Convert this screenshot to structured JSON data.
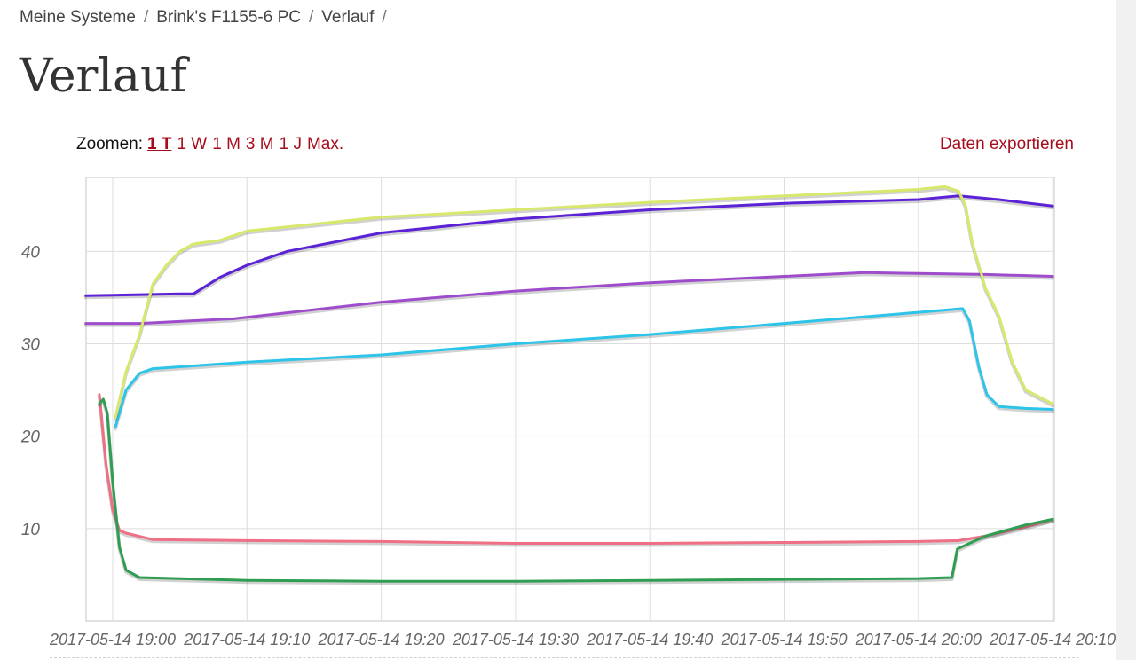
{
  "breadcrumb": {
    "items": [
      "Meine Systeme",
      "Brink's F1155-6 PC",
      "Verlauf"
    ],
    "separator": "/"
  },
  "page": {
    "title": "Verlauf"
  },
  "zoom": {
    "label": "Zoomen:",
    "options": [
      "1 T",
      "1 W",
      "1 M",
      "3 M",
      "1 J",
      "Max."
    ],
    "active": "1 T"
  },
  "export": {
    "label": "Daten exportieren"
  },
  "chart_data": {
    "type": "line",
    "ylim": [
      0,
      48
    ],
    "yticks": [
      10,
      20,
      30,
      40
    ],
    "xlim": [
      "2017-05-14 18:58",
      "2017-05-14 20:10"
    ],
    "xticks": [
      "2017-05-14 19:00",
      "2017-05-14 19:10",
      "2017-05-14 19:20",
      "2017-05-14 19:30",
      "2017-05-14 19:40",
      "2017-05-14 19:50",
      "2017-05-14 20:00",
      "2017-05-14 20:10"
    ],
    "grid": true,
    "series": [
      {
        "color": "#5c22d6",
        "x": [
          "2017-05-14 18:58",
          "2017-05-14 19:05",
          "2017-05-14 19:06",
          "2017-05-14 19:08",
          "2017-05-14 19:10",
          "2017-05-14 19:13",
          "2017-05-14 19:20",
          "2017-05-14 19:30",
          "2017-05-14 19:40",
          "2017-05-14 19:50",
          "2017-05-14 20:00",
          "2017-05-14 20:03",
          "2017-05-14 20:06",
          "2017-05-14 20:10"
        ],
        "y": [
          35.2,
          35.4,
          35.4,
          37.2,
          38.5,
          40.0,
          42.0,
          43.5,
          44.5,
          45.2,
          45.6,
          46.0,
          45.6,
          44.9
        ]
      },
      {
        "color": "#9e4ccc",
        "x": [
          "2017-05-14 18:58",
          "2017-05-14 19:02",
          "2017-05-14 19:09",
          "2017-05-14 19:20",
          "2017-05-14 19:30",
          "2017-05-14 19:40",
          "2017-05-14 19:50",
          "2017-05-14 19:56",
          "2017-05-14 20:00",
          "2017-05-14 20:05",
          "2017-05-14 20:10"
        ],
        "y": [
          32.2,
          32.2,
          32.7,
          34.5,
          35.7,
          36.6,
          37.3,
          37.7,
          37.6,
          37.5,
          37.3
        ]
      },
      {
        "color": "#2cc4e8",
        "x": [
          "2017-05-14 19:00.2",
          "2017-05-14 19:01",
          "2017-05-14 19:02",
          "2017-05-14 19:03",
          "2017-05-14 19:10",
          "2017-05-14 19:20",
          "2017-05-14 19:30",
          "2017-05-14 19:40",
          "2017-05-14 19:50",
          "2017-05-14 20:00",
          "2017-05-14 20:03.3",
          "20:03.8",
          "20:04.5",
          "20:05.1",
          "20:06",
          "20:08",
          "20:10"
        ],
        "y": [
          21.0,
          25.0,
          26.8,
          27.3,
          28.0,
          28.8,
          30.0,
          31.0,
          32.2,
          33.4,
          33.8,
          32.5,
          27.5,
          24.5,
          23.2,
          23.0,
          22.9
        ]
      },
      {
        "color": "#d7e86a",
        "x": [
          "19:00.2",
          "19:01",
          "19:02",
          "19:03",
          "19:04",
          "19:05",
          "19:06",
          "19:07",
          "19:08",
          "19:10",
          "19:20",
          "19:30",
          "19:40",
          "19:50",
          "20:00",
          "20:02",
          "20:03",
          "20:03.5",
          "20:04",
          "20:05",
          "20:06",
          "20:07",
          "20:08",
          "20:10"
        ],
        "y": [
          22.0,
          27.0,
          31.0,
          36.5,
          38.5,
          40.0,
          40.8,
          41.0,
          41.2,
          42.2,
          43.7,
          44.5,
          45.3,
          46.0,
          46.7,
          47.0,
          46.5,
          45.0,
          41.0,
          36.0,
          33.0,
          28.0,
          25.0,
          23.5
        ]
      },
      {
        "color": "#ef6f84",
        "x": [
          "18:59",
          "18:59.5",
          "19:00",
          "19:00.5",
          "19:01",
          "19:03",
          "19:10",
          "19:20",
          "19:30",
          "19:40",
          "19:50",
          "20:00",
          "20:03",
          "20:05",
          "20:08",
          "20:10"
        ],
        "y": [
          24.5,
          17.0,
          12.0,
          9.8,
          9.5,
          8.8,
          8.7,
          8.6,
          8.4,
          8.4,
          8.5,
          8.6,
          8.7,
          9.2,
          10.2,
          11.0
        ]
      },
      {
        "color": "#2f9e52",
        "x": [
          "18:59",
          "18:59.3",
          "18:59.6",
          "19:00",
          "19:00.5",
          "19:01",
          "19:02",
          "19:10",
          "19:20",
          "19:30",
          "19:40",
          "19:50",
          "20:00",
          "20:02.5",
          "20:02.9",
          "20:03.2",
          "20:05",
          "20:08",
          "20:10"
        ],
        "y": [
          23.5,
          24.0,
          22.5,
          15.0,
          8.0,
          5.5,
          4.7,
          4.4,
          4.3,
          4.3,
          4.4,
          4.5,
          4.6,
          4.7,
          7.8,
          8.0,
          9.2,
          10.4,
          11.0
        ]
      }
    ]
  }
}
